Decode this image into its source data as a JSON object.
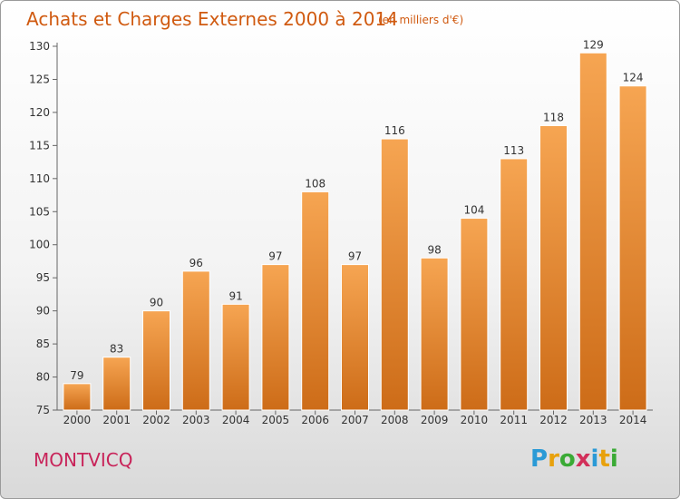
{
  "header": {
    "title": "Achats et Charges Externes 2000 à 2014",
    "subtitle": "(en milliers d'€)"
  },
  "footer": {
    "city": "MONTVICQ",
    "brand": "Proxiti"
  },
  "colors": {
    "bar_light": "#f6a552",
    "bar_dark": "#cd6c18",
    "title": "#d05a10",
    "city": "#c8245a"
  },
  "chart_data": {
    "type": "bar",
    "title": "Achats et Charges Externes 2000 à 2014",
    "subtitle": "(en milliers d'€)",
    "categories": [
      "2000",
      "2001",
      "2002",
      "2003",
      "2004",
      "2005",
      "2006",
      "2007",
      "2008",
      "2009",
      "2010",
      "2011",
      "2012",
      "2013",
      "2014"
    ],
    "values": [
      79,
      83,
      90,
      96,
      91,
      97,
      108,
      97,
      116,
      98,
      104,
      113,
      118,
      129,
      124
    ],
    "ylim": [
      75,
      130
    ],
    "yticks": [
      75,
      80,
      85,
      90,
      95,
      100,
      105,
      110,
      115,
      120,
      125,
      130
    ],
    "grid": false,
    "data_labels": true
  }
}
